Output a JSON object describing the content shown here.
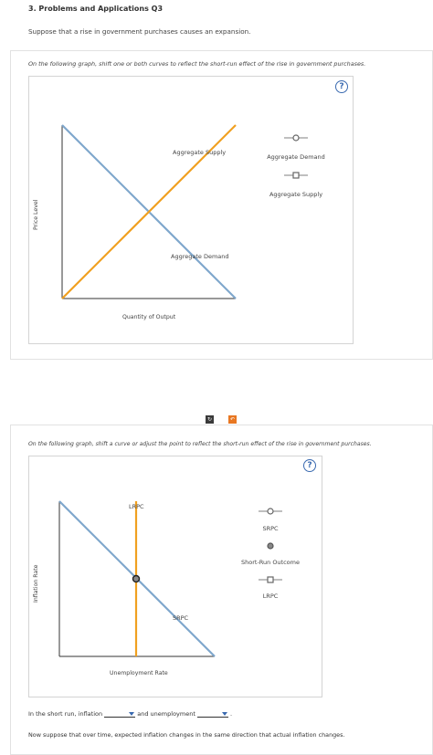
{
  "header": {
    "title": "3. Problems and Applications Q3",
    "intro": "Suppose that a rise in government purchases causes an expansion."
  },
  "graph1": {
    "instruction": "On the following graph, shift one or both curves to reflect the short-run effect of the rise in government purchases.",
    "help_label": "?",
    "y_axis_label": "Price Level",
    "x_axis_label": "Quantity of Output",
    "curve_label_as": "Aggregate Supply",
    "curve_label_ad": "Aggregate Demand",
    "legend": [
      {
        "label": "Aggregate Demand",
        "marker": "circle"
      },
      {
        "label": "Aggregate Supply",
        "marker": "square"
      }
    ],
    "colors": {
      "ad": "#7fa7cc",
      "as": "#f0a020"
    }
  },
  "toolbar": {
    "reset_icon": "↻",
    "undo_icon": "↶",
    "undo_color": "#e87722"
  },
  "graph2": {
    "instruction": "On the following graph, shift a curve or adjust the point to reflect the short-run effect of the rise in government purchases.",
    "help_label": "?",
    "y_axis_label": "Inflation Rate",
    "x_axis_label": "Unemployment Rate",
    "curve_label_lrpc": "LRPC",
    "curve_label_srpc": "SRPC",
    "legend": [
      {
        "label": "SRPC",
        "marker": "circle"
      },
      {
        "label": "Short-Run Outcome",
        "marker": "dot"
      },
      {
        "label": "LRPC",
        "marker": "square"
      }
    ]
  },
  "question": {
    "text1": "In the short run, inflation",
    "text2": "and unemployment",
    "text3": ".",
    "dropdown1_value": "",
    "dropdown2_value": ""
  },
  "footer": {
    "text": "Now suppose that over time, expected inflation changes in the same direction that actual inflation changes."
  }
}
